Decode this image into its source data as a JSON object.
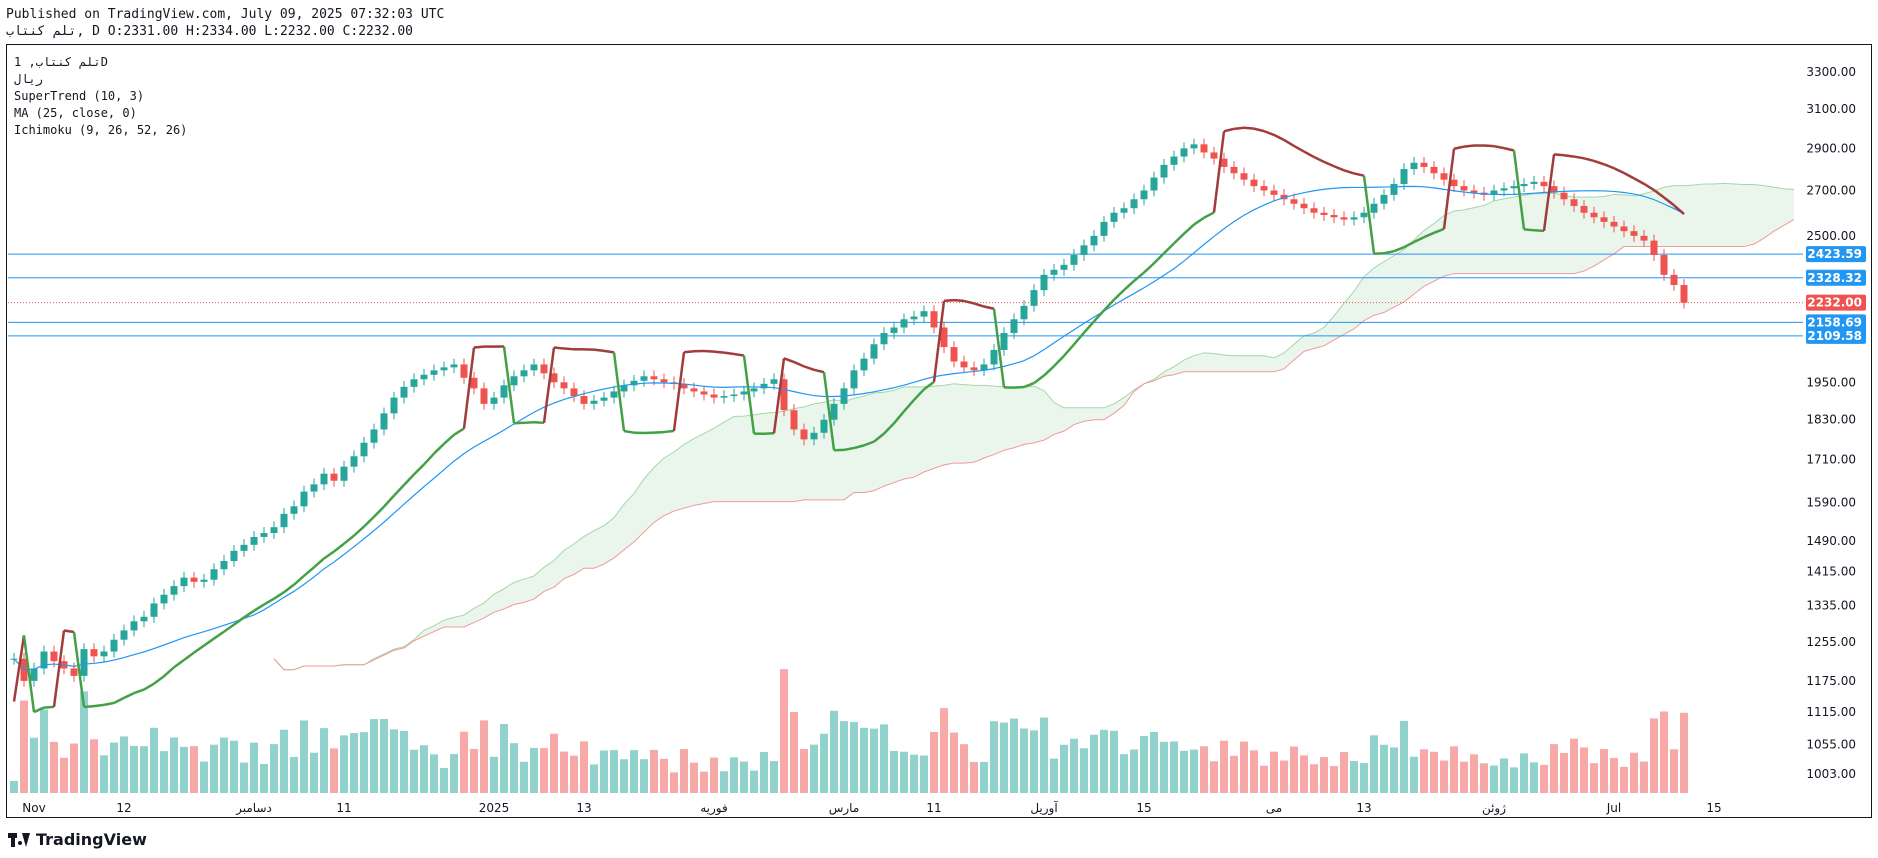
{
  "header": {
    "line1": "Published on TradingView.com, July 09, 2025 07:32:03 UTC",
    "line2": "تلم کنتاب, D O:2331.00 H:2334.00 L:2232.00 C:2232.00"
  },
  "legend": {
    "symbol": "تلم کنتاب, 1D",
    "currency": "ریال",
    "supertrend": "SuperTrend (10, 3)",
    "ma": "MA (25, close, 0)",
    "ichimoku": "Ichimoku (9, 26, 52, 26)"
  },
  "brand": "TradingView",
  "chart_data": {
    "type": "candlestick",
    "title": "تلم کنتاب, 1D",
    "log_scale": true,
    "ylim": [
      960,
      3450
    ],
    "y_ticks": [
      3300,
      3100,
      2900,
      2700,
      2500,
      1950,
      1830,
      1710,
      1590,
      1490,
      1415,
      1335,
      1255,
      1175,
      1115,
      1055,
      1003
    ],
    "y_tick_labels": [
      "3300.00",
      "3100.00",
      "2900.00",
      "2700.00",
      "2500.00",
      "1950.00",
      "1830.00",
      "1710.00",
      "1590.00",
      "1490.00",
      "1415.00",
      "1335.00",
      "1255.00",
      "1175.00",
      "1115.00",
      "1055.00",
      "1003.00"
    ],
    "x_ticks": [
      {
        "label": "Nov",
        "bar": 2
      },
      {
        "label": "12",
        "bar": 11
      },
      {
        "label": "دسامبر",
        "bar": 24
      },
      {
        "label": "11",
        "bar": 33
      },
      {
        "label": "2025",
        "bar": 48
      },
      {
        "label": "13",
        "bar": 57
      },
      {
        "label": "فوریه",
        "bar": 70
      },
      {
        "label": "مارس",
        "bar": 83
      },
      {
        "label": "11",
        "bar": 92
      },
      {
        "label": "آوریل",
        "bar": 103
      },
      {
        "label": "15",
        "bar": 113
      },
      {
        "label": "می",
        "bar": 126
      },
      {
        "label": "13",
        "bar": 135
      },
      {
        "label": "ژوئن",
        "bar": 148
      },
      {
        "label": "Jul",
        "bar": 160
      },
      {
        "label": "15",
        "bar": 170
      }
    ],
    "horizontal_lines": [
      {
        "value": 2423.59,
        "label": "2423.59",
        "color": "#2196f3"
      },
      {
        "value": 2328.32,
        "label": "2328.32",
        "color": "#2196f3"
      },
      {
        "value": 2158.69,
        "label": "2158.69",
        "color": "#2196f3"
      },
      {
        "value": 2109.58,
        "label": "2109.58",
        "color": "#2196f3"
      }
    ],
    "last_price": {
      "value": 2232.0,
      "label": "2232.00",
      "color": "#ef5350"
    },
    "colors": {
      "up": "#26a69a",
      "down": "#ef5350",
      "supertrend_up": "#43a047",
      "supertrend_down": "#a03c3c",
      "ma": "#2196f3",
      "cloud_up": "#e8f5e9",
      "cloud_down": "#fde8e8"
    },
    "series": [
      {
        "name": "price",
        "close": [
          1220,
          1175,
          1200,
          1235,
          1215,
          1200,
          1185,
          1240,
          1225,
          1235,
          1260,
          1280,
          1300,
          1310,
          1340,
          1360,
          1380,
          1400,
          1390,
          1395,
          1420,
          1440,
          1465,
          1480,
          1500,
          1510,
          1525,
          1560,
          1580,
          1620,
          1640,
          1670,
          1650,
          1690,
          1720,
          1760,
          1800,
          1850,
          1900,
          1935,
          1960,
          1975,
          1990,
          2000,
          2010,
          1965,
          1930,
          1880,
          1900,
          1940,
          1970,
          1990,
          2010,
          1980,
          1950,
          1930,
          1905,
          1880,
          1890,
          1900,
          1920,
          1940,
          1955,
          1970,
          1960,
          1950,
          1945,
          1930,
          1920,
          1910,
          1900,
          1905,
          1910,
          1920,
          1930,
          1945,
          1960,
          1860,
          1800,
          1770,
          1790,
          1830,
          1880,
          1930,
          1990,
          2030,
          2080,
          2120,
          2140,
          2170,
          2180,
          2200,
          2140,
          2070,
          2020,
          2000,
          1990,
          2010,
          2060,
          2120,
          2170,
          2220,
          2280,
          2340,
          2360,
          2380,
          2420,
          2460,
          2500,
          2560,
          2600,
          2620,
          2660,
          2700,
          2760,
          2820,
          2860,
          2900,
          2920,
          2880,
          2850,
          2810,
          2780,
          2750,
          2720,
          2700,
          2680,
          2660,
          2640,
          2620,
          2600,
          2590,
          2580,
          2570,
          2580,
          2600,
          2640,
          2680,
          2730,
          2800,
          2830,
          2810,
          2780,
          2750,
          2720,
          2700,
          2690,
          2680,
          2700,
          2710,
          2720,
          2730,
          2740,
          2720,
          2690,
          2660,
          2630,
          2600,
          2580,
          2560,
          2540,
          2520,
          2500,
          2480,
          2420,
          2340,
          2300,
          2232
        ]
      },
      {
        "name": "volume"
      }
    ]
  }
}
